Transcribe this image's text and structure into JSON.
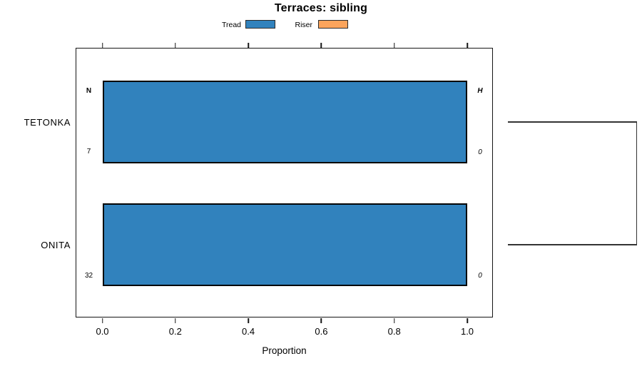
{
  "title": "Terraces: sibling",
  "chart_data": {
    "type": "bar",
    "orientation": "horizontal",
    "title": "Terraces: sibling",
    "xlabel": "Proportion",
    "categories": [
      "TETONKA",
      "ONITA"
    ],
    "series": [
      {
        "name": "Tread",
        "color": "#3182BD",
        "values": [
          1.0,
          1.0
        ]
      },
      {
        "name": "Riser",
        "color": "#FBA45C",
        "values": [
          0.0,
          0.0
        ]
      }
    ],
    "x_ticks": [
      "0.0",
      "0.2",
      "0.4",
      "0.6",
      "0.8",
      "1.0"
    ],
    "xlim": [
      0.0,
      1.0
    ],
    "grid": false,
    "legend_position": "top-center",
    "bar_border_color": "#000000",
    "annotations": {
      "col_header_left": "N",
      "col_header_right": "H",
      "rows": [
        {
          "category": "TETONKA",
          "n": "7",
          "h": "0"
        },
        {
          "category": "ONITA",
          "n": "32",
          "h": "0"
        }
      ]
    },
    "dendrogram": {
      "position": "right-margin",
      "joined_leaves": [
        "TETONKA",
        "ONITA"
      ]
    }
  },
  "colors": {
    "background": "#FFFFFF",
    "text": "#000000",
    "axis": "#161616",
    "dendrogram_line": "#333333"
  }
}
